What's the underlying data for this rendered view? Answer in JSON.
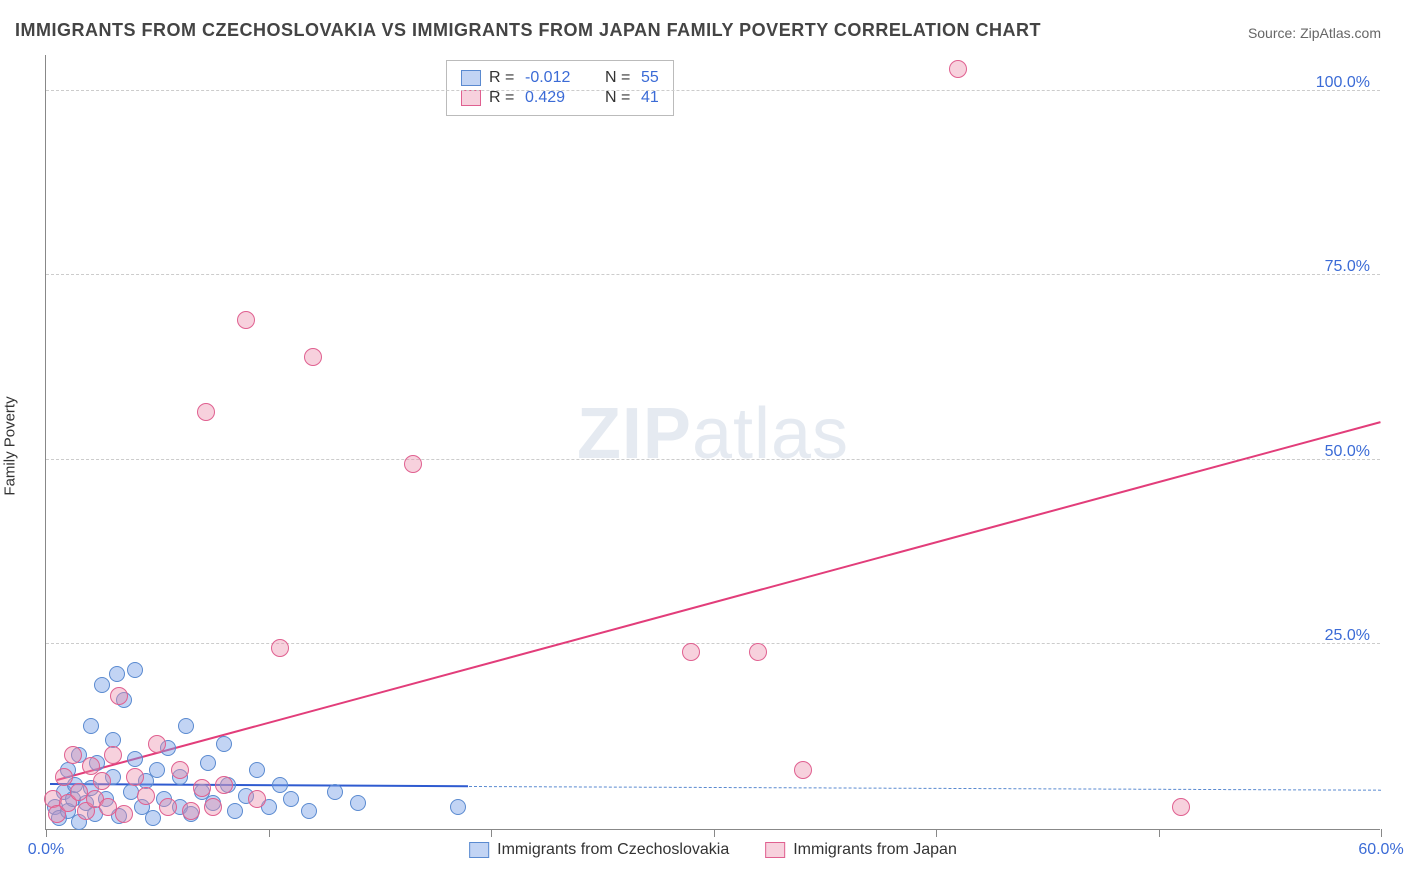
{
  "title": "IMMIGRANTS FROM CZECHOSLOVAKIA VS IMMIGRANTS FROM JAPAN FAMILY POVERTY CORRELATION CHART",
  "source": "Source: ZipAtlas.com",
  "watermark_a": "ZIP",
  "watermark_b": "atlas",
  "yaxis_label": "Family Poverty",
  "x_min": 0,
  "x_max": 60,
  "y_min": 0,
  "y_max": 105,
  "y_ticks": [
    25,
    50,
    75,
    100
  ],
  "y_tick_labels": [
    "25.0%",
    "50.0%",
    "75.0%",
    "100.0%"
  ],
  "x_ticks": [
    0,
    10,
    20,
    30,
    40,
    50,
    60
  ],
  "x_tick_labels": {
    "0": "0.0%",
    "60": "60.0%"
  },
  "series": [
    {
      "key": "czech",
      "label": "Immigrants from Czechoslovakia",
      "fill": "rgba(120,160,230,0.45)",
      "stroke": "#5a8ad0",
      "R": "-0.012",
      "N": "55",
      "marker_radius": 8,
      "trend": {
        "x1": 0.2,
        "y1": 6.0,
        "x2": 19.0,
        "y2": 5.7,
        "solid_color": "#2f5bd0",
        "width": 2.2
      },
      "trend_dash": {
        "x1": 19.0,
        "y1": 5.7,
        "x2": 60.0,
        "y2": 5.2,
        "color": "#5a8ad0",
        "width": 1.6
      },
      "points": [
        [
          0.4,
          3.0
        ],
        [
          0.6,
          1.5
        ],
        [
          0.8,
          5.0
        ],
        [
          1.0,
          2.5
        ],
        [
          1.0,
          8.0
        ],
        [
          1.2,
          4.0
        ],
        [
          1.3,
          6.0
        ],
        [
          1.5,
          1.0
        ],
        [
          1.5,
          10.0
        ],
        [
          1.8,
          3.5
        ],
        [
          2.0,
          5.5
        ],
        [
          2.0,
          14.0
        ],
        [
          2.2,
          2.0
        ],
        [
          2.3,
          9.0
        ],
        [
          2.5,
          19.5
        ],
        [
          2.7,
          4.0
        ],
        [
          3.0,
          7.0
        ],
        [
          3.0,
          12.0
        ],
        [
          3.2,
          21.0
        ],
        [
          3.3,
          1.8
        ],
        [
          3.5,
          17.5
        ],
        [
          3.8,
          5.0
        ],
        [
          4.0,
          9.5
        ],
        [
          4.0,
          21.5
        ],
        [
          4.3,
          3.0
        ],
        [
          4.5,
          6.5
        ],
        [
          4.8,
          1.5
        ],
        [
          5.0,
          8.0
        ],
        [
          5.3,
          4.0
        ],
        [
          5.5,
          11.0
        ],
        [
          6.0,
          3.0
        ],
        [
          6.0,
          7.0
        ],
        [
          6.3,
          14.0
        ],
        [
          6.5,
          2.0
        ],
        [
          7.0,
          5.0
        ],
        [
          7.3,
          9.0
        ],
        [
          7.5,
          3.5
        ],
        [
          8.0,
          11.5
        ],
        [
          8.2,
          6.0
        ],
        [
          8.5,
          2.5
        ],
        [
          9.0,
          4.5
        ],
        [
          9.5,
          8.0
        ],
        [
          10.0,
          3.0
        ],
        [
          10.5,
          6.0
        ],
        [
          11.0,
          4.0
        ],
        [
          11.8,
          2.5
        ],
        [
          13.0,
          5.0
        ],
        [
          14.0,
          3.5
        ],
        [
          18.5,
          3.0
        ]
      ]
    },
    {
      "key": "japan",
      "label": "Immigrants from Japan",
      "fill": "rgba(235,140,170,0.40)",
      "stroke": "#e06090",
      "R": "0.429",
      "N": "41",
      "marker_radius": 9,
      "trend": {
        "x1": 0.5,
        "y1": 6.5,
        "x2": 60.0,
        "y2": 55.0,
        "solid_color": "#e23d7a",
        "width": 2.2
      },
      "points": [
        [
          0.3,
          4.0
        ],
        [
          0.5,
          2.0
        ],
        [
          0.8,
          7.0
        ],
        [
          1.0,
          3.5
        ],
        [
          1.2,
          10.0
        ],
        [
          1.5,
          5.0
        ],
        [
          1.8,
          2.5
        ],
        [
          2.0,
          8.5
        ],
        [
          2.2,
          4.0
        ],
        [
          2.5,
          6.5
        ],
        [
          2.8,
          3.0
        ],
        [
          3.0,
          10.0
        ],
        [
          3.3,
          18.0
        ],
        [
          3.5,
          2.0
        ],
        [
          4.0,
          7.0
        ],
        [
          4.5,
          4.5
        ],
        [
          5.0,
          11.5
        ],
        [
          5.5,
          3.0
        ],
        [
          6.0,
          8.0
        ],
        [
          6.5,
          2.5
        ],
        [
          7.0,
          5.5
        ],
        [
          7.2,
          56.5
        ],
        [
          7.5,
          3.0
        ],
        [
          8.0,
          6.0
        ],
        [
          9.0,
          69.0
        ],
        [
          9.5,
          4.0
        ],
        [
          10.5,
          24.5
        ],
        [
          12.0,
          64.0
        ],
        [
          16.5,
          49.5
        ],
        [
          29.0,
          24.0
        ],
        [
          32.0,
          24.0
        ],
        [
          34.0,
          8.0
        ],
        [
          41.0,
          103.0
        ],
        [
          51.0,
          3.0
        ]
      ]
    }
  ]
}
